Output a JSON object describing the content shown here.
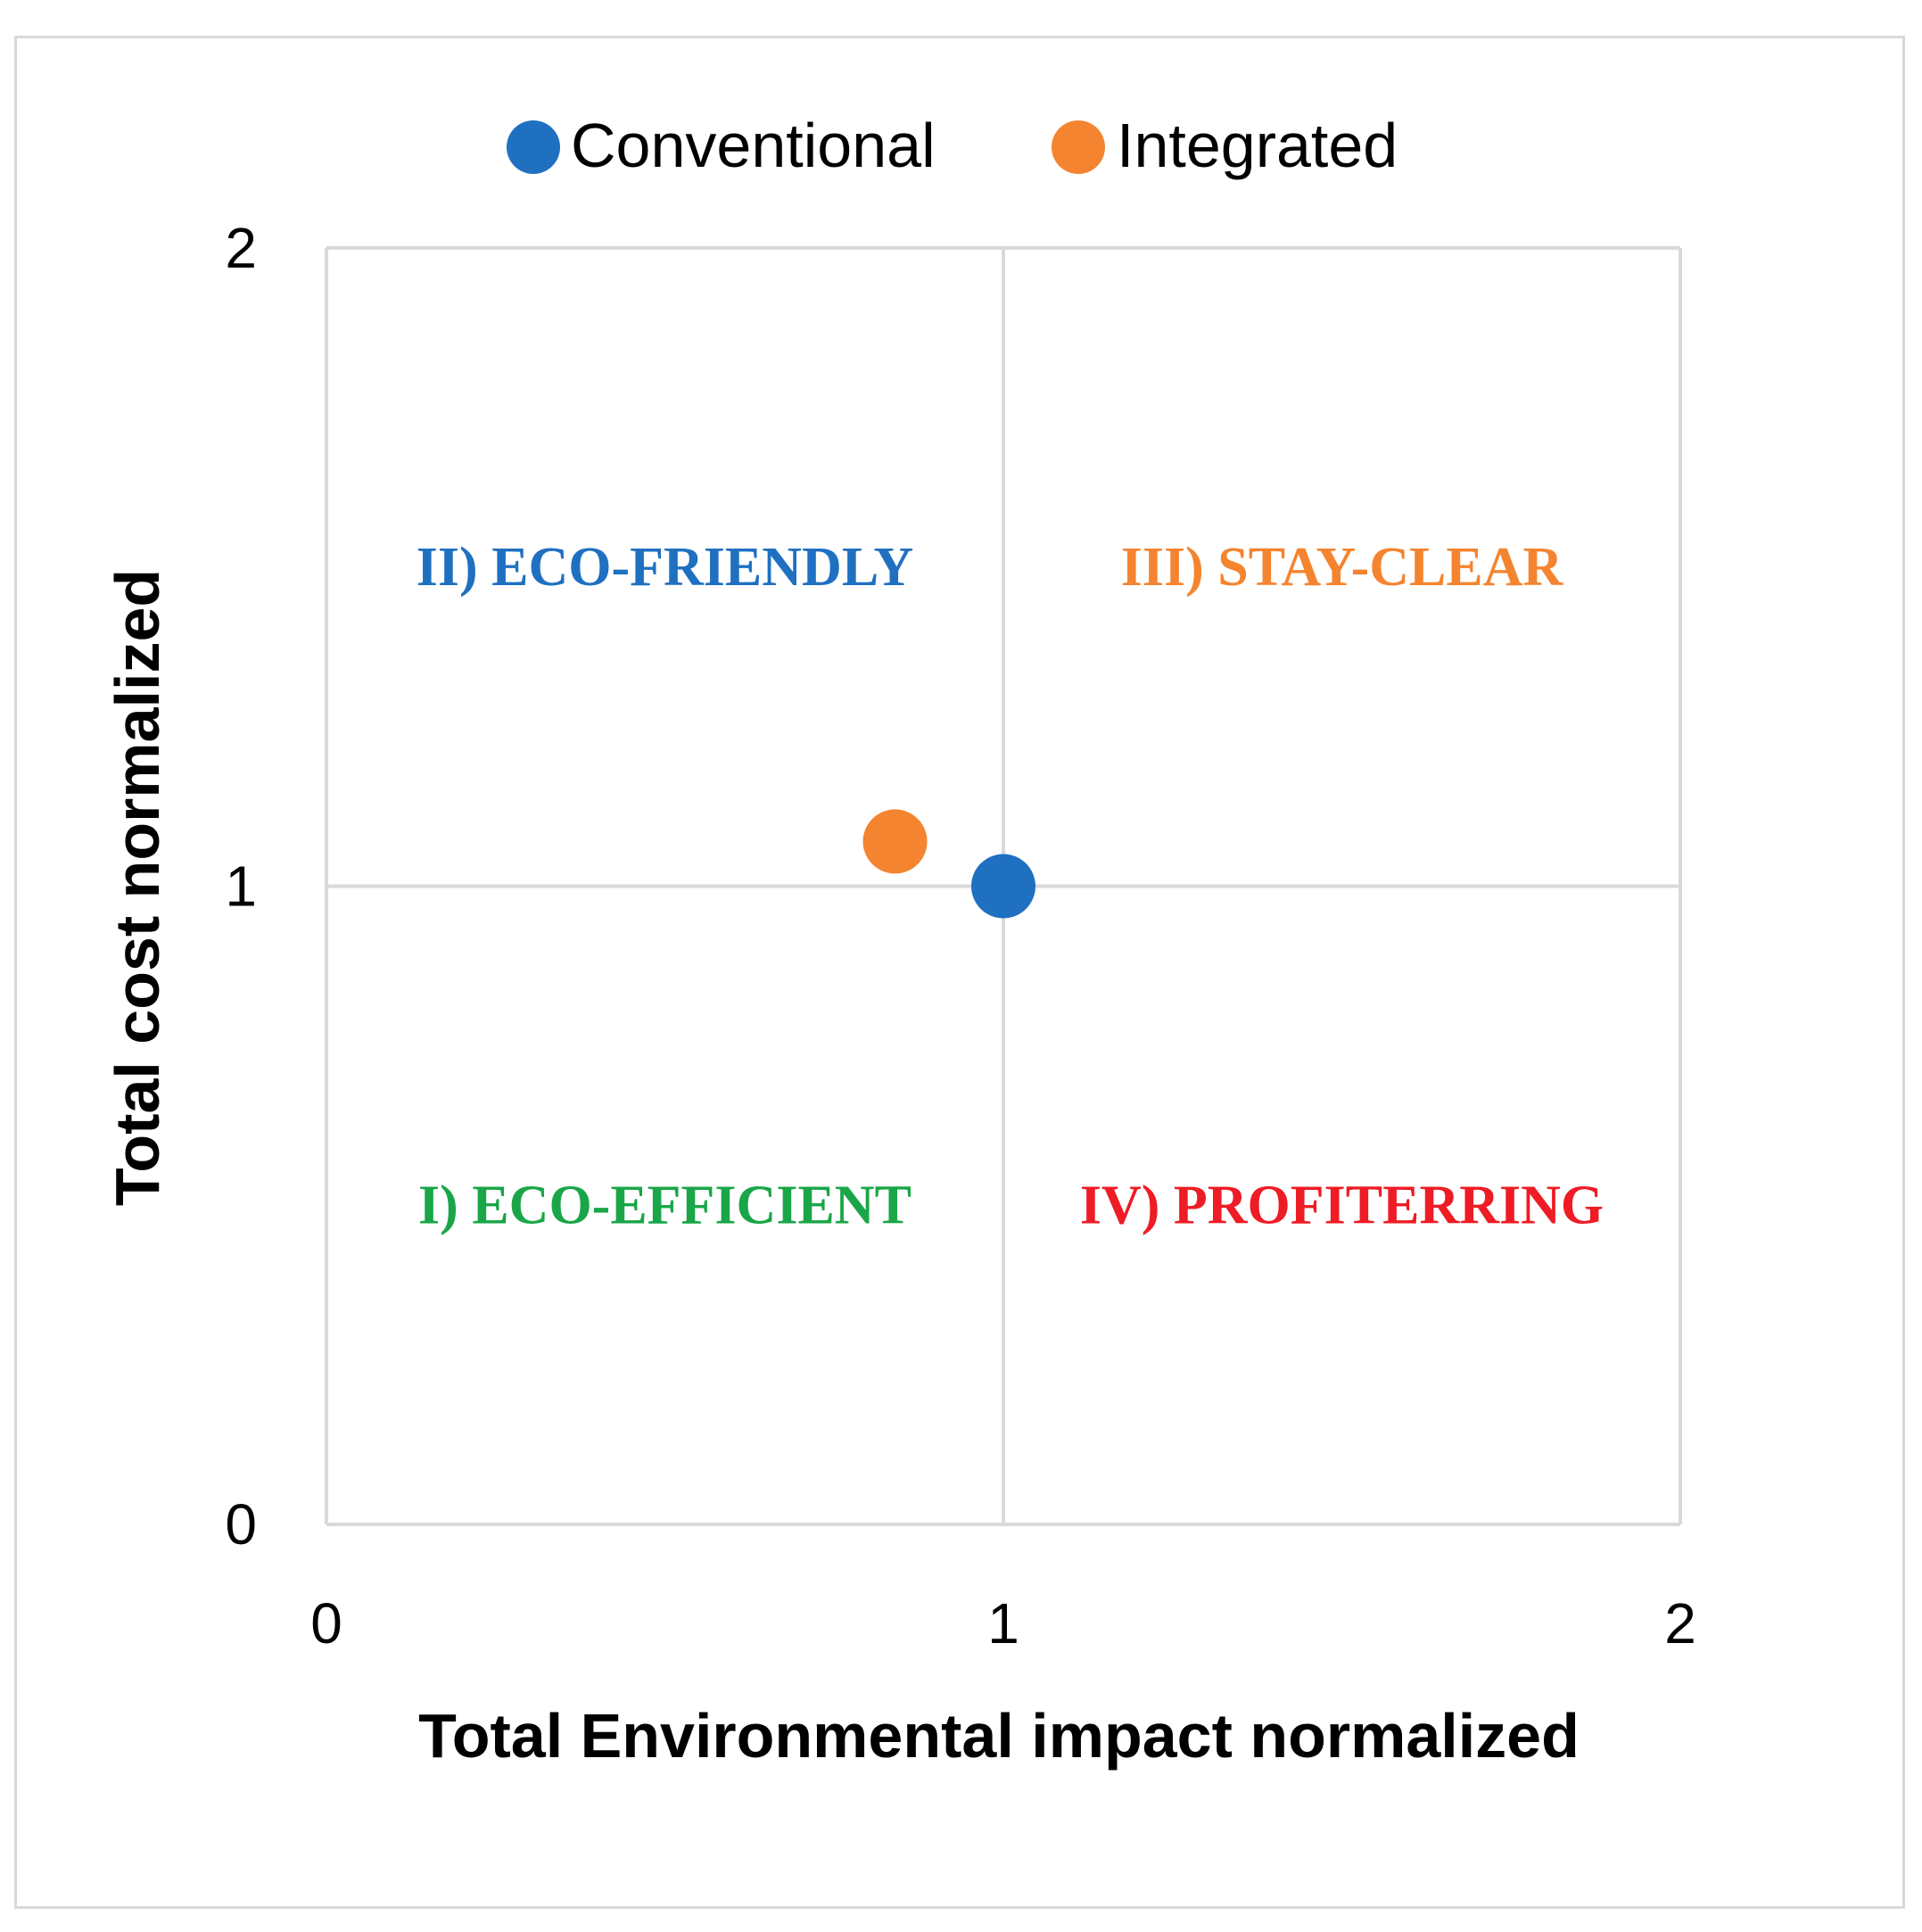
{
  "chart_data": {
    "type": "scatter",
    "xlabel": "Total Environmental impact normalized",
    "ylabel": "Total cost normalized",
    "xlim": [
      0,
      2
    ],
    "ylim": [
      0,
      2
    ],
    "x_ticks": [
      "0",
      "1",
      "2"
    ],
    "y_ticks": [
      "0",
      "1",
      "2"
    ],
    "grid": true,
    "legend_position": "top-center",
    "series": [
      {
        "name": "Conventional",
        "color": "#1f70c1",
        "x": [
          1.0
        ],
        "y": [
          1.0
        ]
      },
      {
        "name": "Integrated",
        "color": "#f4842f",
        "x": [
          0.84
        ],
        "y": [
          1.07
        ]
      }
    ],
    "quadrant_labels": [
      {
        "text": "II) ECO-FRIENDLY",
        "color": "#1f70c1",
        "x": 0.5,
        "y": 1.5
      },
      {
        "text": "III) STAY-CLEAR",
        "color": "#f4842f",
        "x": 1.5,
        "y": 1.5
      },
      {
        "text": "I) ECO-EFFICIENT",
        "color": "#1aa648",
        "x": 0.5,
        "y": 0.5
      },
      {
        "text": "IV) PROFITERRING",
        "color": "#ee1c25",
        "x": 1.5,
        "y": 0.5
      }
    ]
  }
}
